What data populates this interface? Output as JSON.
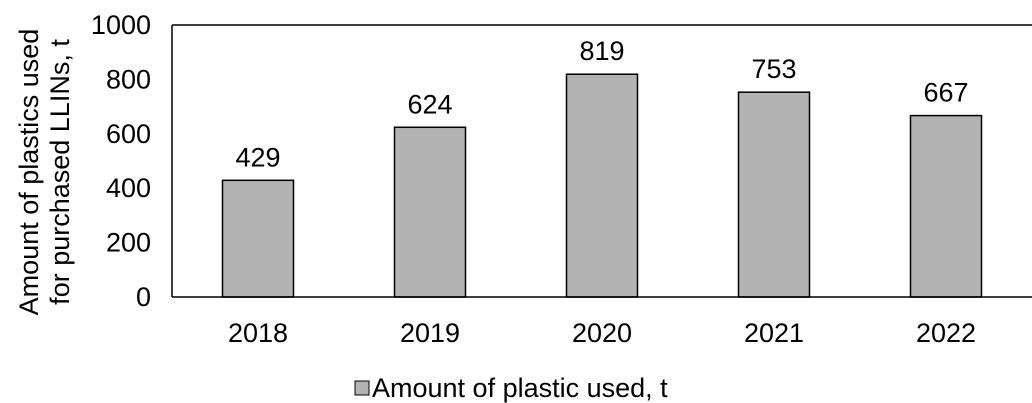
{
  "chart_data": {
    "type": "bar",
    "categories": [
      "2018",
      "2019",
      "2020",
      "2021",
      "2022"
    ],
    "series": [
      {
        "name": "Amount of plastic used, t",
        "values": [
          429,
          624,
          819,
          753,
          667
        ],
        "color": "#b3b3b3"
      }
    ],
    "data_labels": [
      "429",
      "624",
      "819",
      "753",
      "667"
    ],
    "ylabel_lines": [
      "Amount of plastics used",
      "for purchased LLINs, t"
    ],
    "ylim": [
      0,
      1000
    ],
    "yticks": [
      "0",
      "200",
      "400",
      "600",
      "800",
      "1000"
    ],
    "grid": false,
    "legend_position": "bottom"
  }
}
